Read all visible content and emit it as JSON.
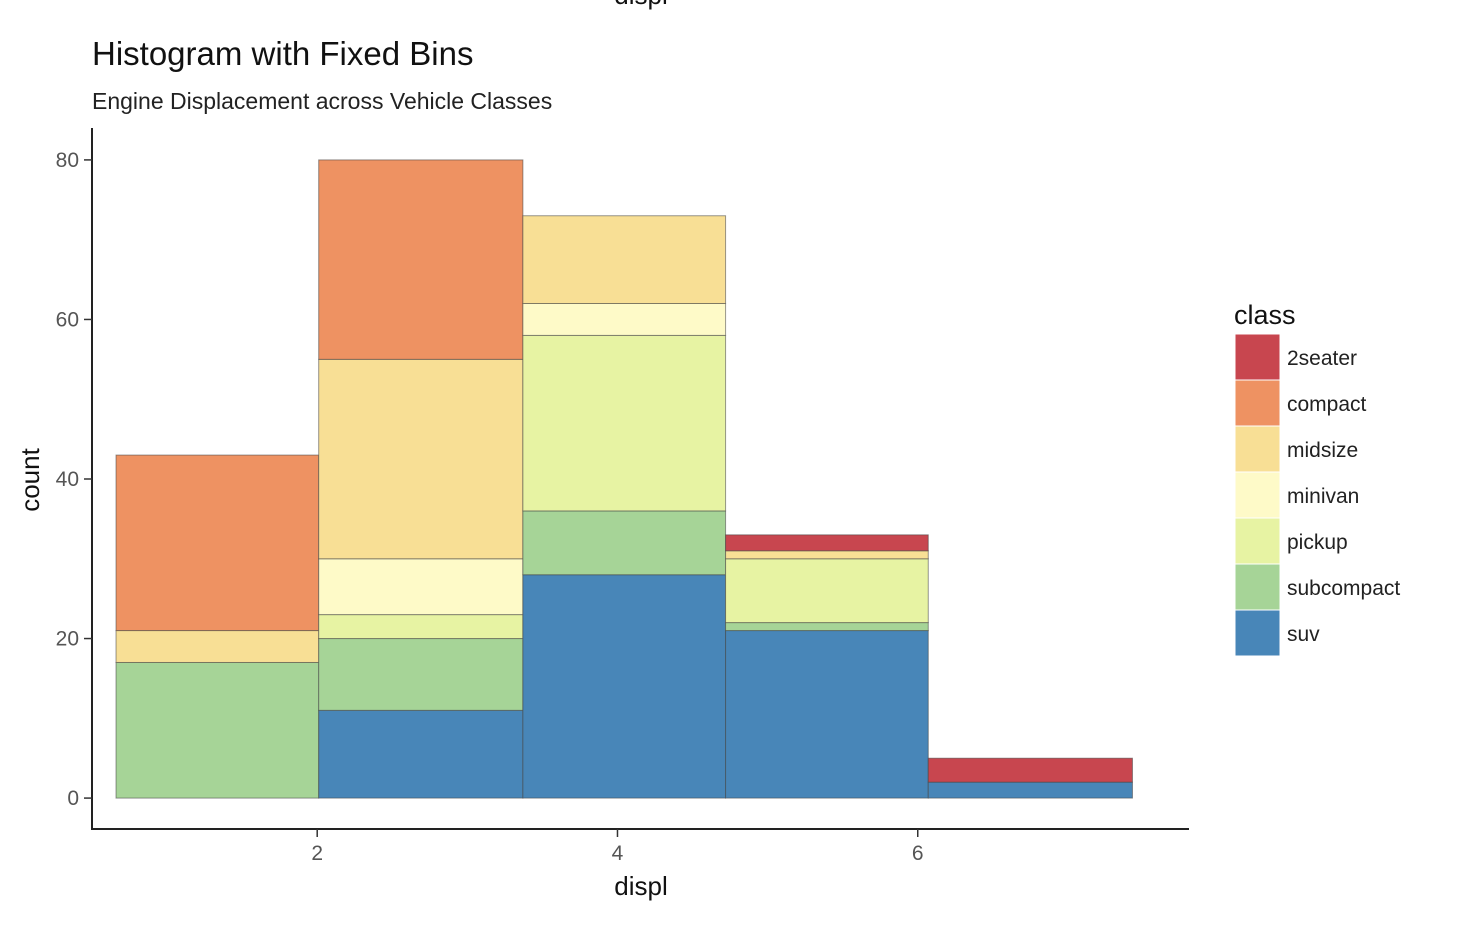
{
  "chart_data": {
    "type": "bar",
    "title": "Histogram with Fixed Bins",
    "subtitle": "Engine Displacement across Vehicle Classes",
    "top_label": "displ",
    "xlabel": "displ",
    "ylabel": "count",
    "xlim": [
      0.5,
      7.8
    ],
    "ylim": [
      -4,
      84
    ],
    "xticks": [
      2,
      4,
      6
    ],
    "yticks": [
      0,
      20,
      40,
      60,
      80
    ],
    "bins": [
      {
        "start": 0.66,
        "end": 2.01,
        "counts": {
          "suv": 0,
          "subcompact": 17,
          "pickup": 0,
          "minivan": 0,
          "midsize": 4,
          "compact": 22,
          "2seater": 0
        }
      },
      {
        "start": 2.01,
        "end": 3.37,
        "counts": {
          "suv": 11,
          "subcompact": 9,
          "pickup": 3,
          "minivan": 7,
          "midsize": 25,
          "compact": 25,
          "2seater": 0
        }
      },
      {
        "start": 3.37,
        "end": 4.72,
        "counts": {
          "suv": 28,
          "subcompact": 8,
          "pickup": 22,
          "minivan": 4,
          "midsize": 11,
          "compact": 0,
          "2seater": 0
        }
      },
      {
        "start": 4.72,
        "end": 6.07,
        "counts": {
          "suv": 21,
          "subcompact": 1,
          "pickup": 8,
          "minivan": 0,
          "midsize": 1,
          "compact": 0,
          "2seater": 2
        }
      },
      {
        "start": 6.07,
        "end": 7.43,
        "counts": {
          "suv": 2,
          "subcompact": 0,
          "pickup": 0,
          "minivan": 0,
          "midsize": 0,
          "compact": 0,
          "2seater": 3
        }
      }
    ],
    "stack_order": [
      "suv",
      "subcompact",
      "pickup",
      "minivan",
      "midsize",
      "compact",
      "2seater"
    ],
    "legend": {
      "title": "class",
      "placement": "right",
      "items": [
        {
          "name": "2seater",
          "color": "#c8464f"
        },
        {
          "name": "compact",
          "color": "#ee9262"
        },
        {
          "name": "midsize",
          "color": "#f8df95"
        },
        {
          "name": "minivan",
          "color": "#fefac8"
        },
        {
          "name": "pickup",
          "color": "#e7f3a3"
        },
        {
          "name": "subcompact",
          "color": "#a6d497"
        },
        {
          "name": "suv",
          "color": "#4886b8"
        }
      ]
    },
    "grid": false
  }
}
